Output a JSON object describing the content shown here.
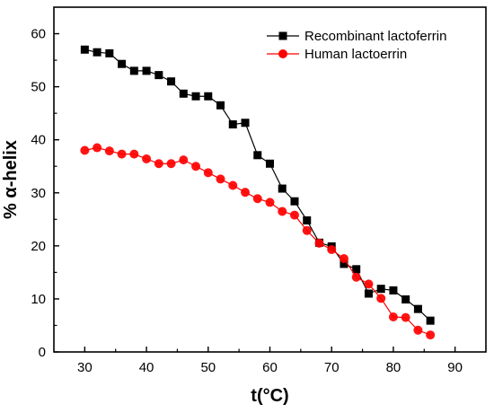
{
  "chart_data": {
    "type": "line",
    "title": "",
    "xlabel": "t(°C)",
    "ylabel": "% α-helix",
    "xlim": [
      25,
      95
    ],
    "ylim": [
      0,
      65
    ],
    "xticks": [
      30,
      40,
      50,
      60,
      70,
      80,
      90
    ],
    "yticks": [
      0,
      10,
      20,
      30,
      40,
      50,
      60
    ],
    "grid": false,
    "legend_position": "top-right",
    "series": [
      {
        "name": "Recombinant lactoferrin",
        "color": "#000000",
        "marker": "square",
        "x": [
          30,
          32,
          34,
          36,
          38,
          40,
          42,
          44,
          46,
          48,
          50,
          52,
          54,
          56,
          58,
          60,
          62,
          64,
          66,
          68,
          70,
          72,
          74,
          76,
          78,
          80,
          82,
          84,
          86
        ],
        "y": [
          57,
          56.5,
          56.3,
          54.3,
          53,
          53,
          52.2,
          51,
          48.7,
          48.2,
          48.2,
          46.5,
          42.9,
          43.2,
          37.1,
          35.5,
          30.8,
          28.4,
          24.8,
          20.6,
          19.9,
          16.6,
          15.6,
          11,
          11.9,
          11.6,
          9.9,
          8.1,
          5.9
        ]
      },
      {
        "name": "Human lactoerrin",
        "color": "#ff0000",
        "marker": "circle",
        "x": [
          30,
          32,
          34,
          36,
          38,
          40,
          42,
          44,
          46,
          48,
          50,
          52,
          54,
          56,
          58,
          60,
          62,
          64,
          66,
          68,
          70,
          72,
          74,
          76,
          78,
          80,
          82,
          84,
          86
        ],
        "y": [
          38,
          38.5,
          37.9,
          37.3,
          37.3,
          36.4,
          35.5,
          35.5,
          36.2,
          35,
          33.8,
          32.6,
          31.4,
          30.1,
          28.9,
          28.2,
          26.5,
          25.8,
          22.9,
          20.5,
          19.3,
          17.6,
          14.1,
          12.8,
          10.1,
          6.6,
          6.5,
          4.1,
          3.2
        ]
      }
    ]
  }
}
